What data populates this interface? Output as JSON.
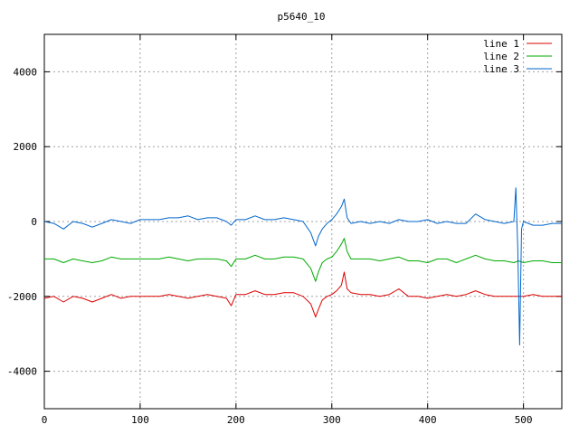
{
  "chart_data": {
    "type": "line",
    "title": "p5640_10",
    "xlabel": "",
    "ylabel": "",
    "xlim": [
      0,
      540
    ],
    "ylim": [
      -5000,
      5000
    ],
    "xticks": [
      0,
      100,
      200,
      300,
      400,
      500
    ],
    "yticks": [
      -4000,
      -2000,
      0,
      2000,
      4000
    ],
    "grid": true,
    "legend_position": "top-right",
    "series": [
      {
        "name": "line 1",
        "color": "#dd0000",
        "x": [
          0,
          10,
          20,
          30,
          40,
          50,
          60,
          70,
          80,
          90,
          100,
          110,
          120,
          130,
          140,
          150,
          160,
          170,
          180,
          190,
          195,
          200,
          210,
          220,
          230,
          240,
          250,
          260,
          270,
          278,
          283,
          286,
          290,
          295,
          300,
          305,
          310,
          313,
          316,
          320,
          330,
          340,
          350,
          360,
          370,
          380,
          390,
          400,
          410,
          420,
          430,
          440,
          450,
          460,
          470,
          480,
          490,
          495,
          500,
          510,
          520,
          530,
          540
        ],
        "values": [
          -2050,
          -2000,
          -2150,
          -2000,
          -2050,
          -2150,
          -2050,
          -1950,
          -2050,
          -2000,
          -2000,
          -2000,
          -2000,
          -1950,
          -2000,
          -2050,
          -2000,
          -1950,
          -2000,
          -2050,
          -2250,
          -1950,
          -1950,
          -1850,
          -1950,
          -1950,
          -1900,
          -1900,
          -2000,
          -2200,
          -2550,
          -2350,
          -2100,
          -2000,
          -1950,
          -1850,
          -1700,
          -1350,
          -1800,
          -1900,
          -1950,
          -1950,
          -2000,
          -1950,
          -1800,
          -2000,
          -2000,
          -2050,
          -2000,
          -1950,
          -2000,
          -1950,
          -1850,
          -1950,
          -2000,
          -2000,
          -2000,
          -2000,
          -2000,
          -1950,
          -2000,
          -2000,
          -2000
        ]
      },
      {
        "name": "line 2",
        "color": "#00aa00",
        "x": [
          0,
          10,
          20,
          30,
          40,
          50,
          60,
          70,
          80,
          90,
          100,
          110,
          120,
          130,
          140,
          150,
          160,
          170,
          180,
          190,
          195,
          200,
          210,
          220,
          230,
          240,
          250,
          260,
          270,
          278,
          283,
          286,
          290,
          295,
          300,
          305,
          310,
          313,
          316,
          320,
          330,
          340,
          350,
          360,
          370,
          380,
          390,
          400,
          410,
          420,
          430,
          440,
          450,
          460,
          470,
          480,
          490,
          495,
          500,
          510,
          520,
          530,
          540
        ],
        "values": [
          -1000,
          -1000,
          -1100,
          -1000,
          -1050,
          -1100,
          -1050,
          -950,
          -1000,
          -1000,
          -1000,
          -1000,
          -1000,
          -950,
          -1000,
          -1050,
          -1000,
          -1000,
          -1000,
          -1050,
          -1200,
          -1000,
          -1000,
          -900,
          -1000,
          -1000,
          -950,
          -950,
          -1000,
          -1250,
          -1600,
          -1350,
          -1100,
          -1000,
          -950,
          -800,
          -600,
          -450,
          -800,
          -1000,
          -1000,
          -1000,
          -1050,
          -1000,
          -950,
          -1050,
          -1050,
          -1100,
          -1000,
          -1000,
          -1100,
          -1000,
          -900,
          -1000,
          -1050,
          -1050,
          -1100,
          -1050,
          -1100,
          -1050,
          -1050,
          -1100,
          -1100
        ]
      },
      {
        "name": "line 3",
        "color": "#0066cc",
        "x": [
          0,
          10,
          20,
          30,
          40,
          50,
          60,
          70,
          80,
          90,
          100,
          110,
          120,
          130,
          140,
          150,
          160,
          170,
          180,
          190,
          195,
          200,
          210,
          220,
          230,
          240,
          250,
          260,
          270,
          278,
          283,
          286,
          290,
          295,
          300,
          305,
          310,
          313,
          316,
          320,
          330,
          340,
          350,
          360,
          370,
          380,
          390,
          400,
          410,
          420,
          430,
          440,
          450,
          460,
          470,
          480,
          490,
          492,
          494,
          496,
          498,
          500,
          510,
          520,
          530,
          540
        ],
        "values": [
          0,
          -50,
          -200,
          0,
          -50,
          -150,
          -50,
          50,
          0,
          -50,
          50,
          50,
          50,
          100,
          100,
          150,
          50,
          100,
          100,
          0,
          -100,
          50,
          50,
          150,
          50,
          50,
          100,
          50,
          0,
          -300,
          -650,
          -400,
          -200,
          -50,
          50,
          200,
          400,
          600,
          100,
          -50,
          0,
          -50,
          0,
          -50,
          50,
          0,
          0,
          50,
          -50,
          0,
          -50,
          -50,
          200,
          50,
          0,
          -50,
          0,
          900,
          -700,
          -3300,
          -200,
          0,
          -100,
          -100,
          -50,
          -50
        ]
      }
    ]
  }
}
